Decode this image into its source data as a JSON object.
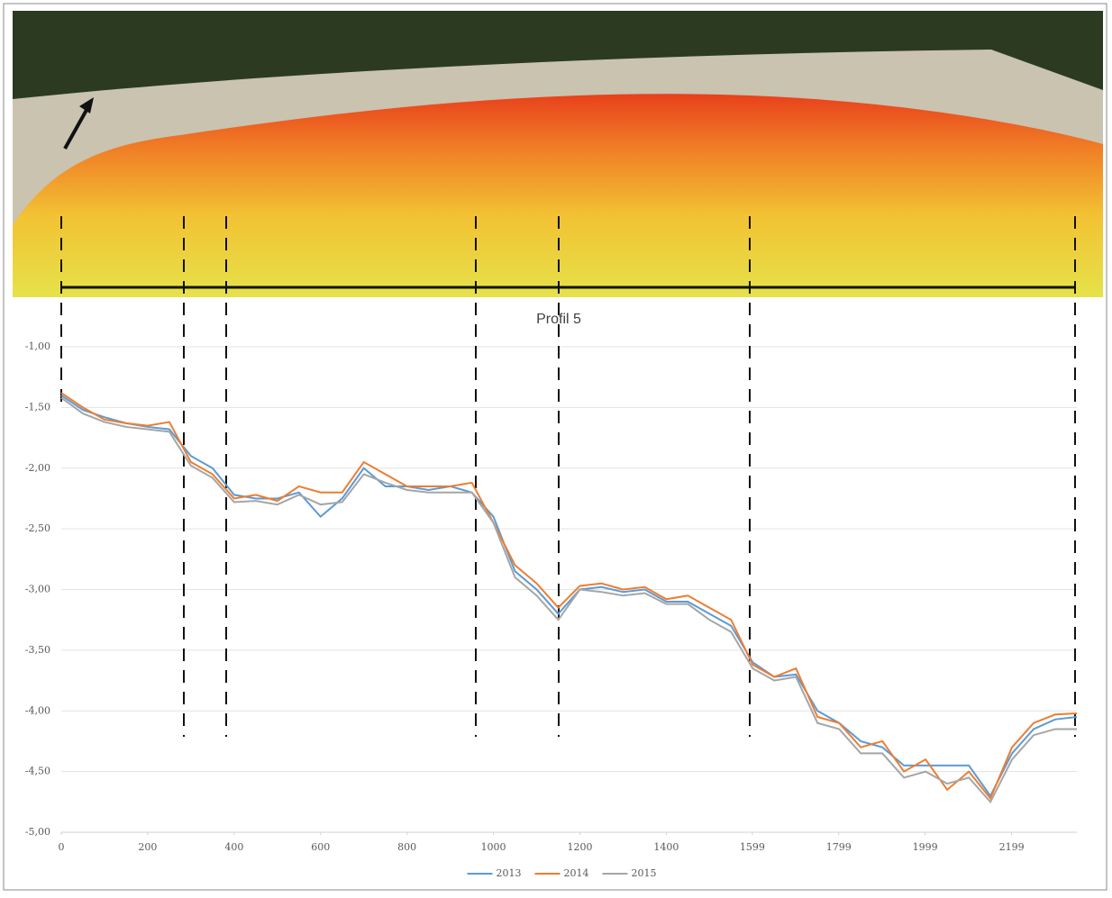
{
  "chart_data": {
    "type": "line",
    "title": "Profil 5",
    "x": [
      0,
      50,
      100,
      150,
      200,
      250,
      300,
      350,
      400,
      450,
      500,
      550,
      600,
      650,
      700,
      750,
      800,
      850,
      900,
      950,
      1000,
      1050,
      1100,
      1150,
      1200,
      1250,
      1300,
      1350,
      1400,
      1450,
      1500,
      1550,
      1600,
      1650,
      1700,
      1750,
      1800,
      1850,
      1900,
      1950,
      2000,
      2050,
      2100,
      2150,
      2200,
      2250,
      2300,
      2350
    ],
    "series": [
      {
        "name": "2013",
        "color": "#5b9bd5",
        "values": [
          -1.4,
          -1.52,
          -1.58,
          -1.63,
          -1.66,
          -1.68,
          -1.9,
          -2.0,
          -2.22,
          -2.25,
          -2.25,
          -2.2,
          -2.4,
          -2.25,
          -2.0,
          -2.15,
          -2.15,
          -2.18,
          -2.15,
          -2.2,
          -2.4,
          -2.85,
          -3.0,
          -3.2,
          -3.0,
          -2.98,
          -3.02,
          -3.0,
          -3.1,
          -3.1,
          -3.2,
          -3.3,
          -3.6,
          -3.72,
          -3.7,
          -4.0,
          -4.1,
          -4.25,
          -4.3,
          -4.45,
          -4.45,
          -4.45,
          -4.45,
          -4.7,
          -4.35,
          -4.15,
          -4.07,
          -4.05
        ]
      },
      {
        "name": "2014",
        "color": "#ed7d31",
        "values": [
          -1.38,
          -1.5,
          -1.6,
          -1.63,
          -1.65,
          -1.62,
          -1.95,
          -2.05,
          -2.25,
          -2.22,
          -2.27,
          -2.15,
          -2.2,
          -2.2,
          -1.95,
          -2.05,
          -2.15,
          -2.15,
          -2.15,
          -2.12,
          -2.45,
          -2.8,
          -2.95,
          -3.15,
          -2.97,
          -2.95,
          -3.0,
          -2.98,
          -3.08,
          -3.05,
          -3.15,
          -3.25,
          -3.62,
          -3.72,
          -3.65,
          -4.05,
          -4.1,
          -4.3,
          -4.25,
          -4.5,
          -4.4,
          -4.65,
          -4.5,
          -4.72,
          -4.3,
          -4.1,
          -4.03,
          -4.02
        ]
      },
      {
        "name": "2015",
        "color": "#a5a5a5",
        "values": [
          -1.42,
          -1.55,
          -1.62,
          -1.66,
          -1.68,
          -1.7,
          -1.98,
          -2.08,
          -2.28,
          -2.27,
          -2.3,
          -2.22,
          -2.3,
          -2.28,
          -2.05,
          -2.12,
          -2.18,
          -2.2,
          -2.2,
          -2.2,
          -2.45,
          -2.9,
          -3.05,
          -3.25,
          -3.0,
          -3.02,
          -3.05,
          -3.03,
          -3.12,
          -3.12,
          -3.25,
          -3.35,
          -3.65,
          -3.75,
          -3.72,
          -4.1,
          -4.15,
          -4.35,
          -4.35,
          -4.55,
          -4.5,
          -4.6,
          -4.55,
          -4.75,
          -4.4,
          -4.2,
          -4.15,
          -4.15
        ]
      }
    ],
    "xlim": [
      0,
      2350
    ],
    "xticks": [
      0,
      200,
      400,
      600,
      800,
      1000,
      1200,
      1400,
      1599,
      1799,
      1999,
      2199
    ],
    "ylim": [
      -5,
      -1
    ],
    "yticks": [
      {
        "value": -1,
        "label": "-1,00"
      },
      {
        "value": -1.5,
        "label": "-1,50"
      },
      {
        "value": -2,
        "label": "-2,00"
      },
      {
        "value": -2.5,
        "label": "-2,50"
      },
      {
        "value": -3,
        "label": "-3,00"
      },
      {
        "value": -3.5,
        "label": "-3,50"
      },
      {
        "value": -4,
        "label": "-4,00"
      },
      {
        "value": -4.5,
        "label": "-4,50"
      },
      {
        "value": -5,
        "label": "-5,00"
      }
    ],
    "grid": true
  }
}
